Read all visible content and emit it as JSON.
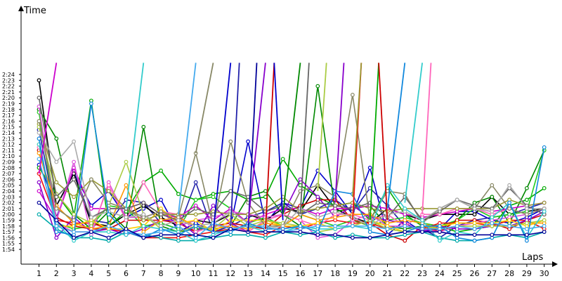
{
  "chart_data": {
    "type": "line",
    "xlabel": "Laps",
    "ylabel": "Time",
    "x": [
      1,
      2,
      3,
      4,
      5,
      6,
      7,
      8,
      9,
      10,
      11,
      12,
      13,
      14,
      15,
      16,
      17,
      18,
      19,
      20,
      21,
      22,
      23,
      24,
      25,
      26,
      27,
      28,
      29,
      30
    ],
    "xlim": [
      0,
      30
    ],
    "ylim": [
      113,
      146
    ],
    "y_unit": "seconds (tick labels shown as m:ss)",
    "y_ticks": [
      114,
      115,
      116,
      117,
      118,
      119,
      120,
      121,
      122,
      123,
      124,
      125,
      126,
      127,
      128,
      129,
      130,
      131,
      132,
      133,
      134,
      135,
      136,
      137,
      138,
      139,
      140,
      141,
      142,
      143,
      144
    ],
    "y_tick_labels": [
      "1:54",
      "1:55",
      "1:56",
      "1:57",
      "1:58",
      "1:59",
      "2:00",
      "2:01",
      "2:02",
      "2:03",
      "2:04",
      "2:05",
      "2:06",
      "2:07",
      "2:08",
      "2:09",
      "2:10",
      "2:11",
      "2:12",
      "2:13",
      "2:14",
      "2:15",
      "2:16",
      "2:17",
      "2:18",
      "2:19",
      "2:20",
      "2:21",
      "2:22",
      "2:23",
      "2:24"
    ],
    "grid": false,
    "legend": "none",
    "series": [
      {
        "color": "#0000cc",
        "values": [
          128.5,
          121.5,
          127,
          121.5,
          124,
          119.5,
          121,
          122.5,
          117,
          118.5,
          117,
          118,
          132.5,
          118.5,
          122,
          121,
          127.5,
          124,
          120,
          128,
          116.5,
          119,
          117,
          117.5,
          120.5,
          120.5,
          119,
          118.5,
          119.5,
          121
        ]
      },
      {
        "color": "#2222aa",
        "values": [
          134.5,
          119.5,
          127.5,
          119,
          118.5,
          122.5,
          122,
          118.5,
          117.5,
          125.5,
          117,
          118,
          119.5,
          120.5,
          122,
          120,
          121,
          122.5,
          120.5,
          124.5,
          121.5,
          118,
          117.5,
          116,
          118,
          119,
          119.5,
          120,
          121,
          122
        ]
      },
      {
        "color": "#000000",
        "values": [
          143,
          121.5,
          127,
          118.5,
          118,
          120,
          121.5,
          119.5,
          118,
          119,
          118.5,
          120,
          120,
          119,
          121,
          120.5,
          125,
          121,
          119.5,
          118.5,
          121,
          120,
          119,
          120,
          120,
          120,
          123,
          120,
          120.5,
          121
        ]
      },
      {
        "color": "#008800",
        "values": [
          138,
          133,
          120,
          117.5,
          120.5,
          117.5,
          135,
          118,
          117,
          117.5,
          117.5,
          118,
          123,
          124,
          120,
          118,
          142,
          120.5,
          121,
          121.5,
          118,
          117.5,
          118,
          117.5,
          119,
          122,
          123,
          118.5,
          124.5,
          131
        ]
      },
      {
        "color": "#00aa00",
        "values": [
          128,
          123.5,
          119.5,
          139.5,
          118,
          120.5,
          125.5,
          127.5,
          123.5,
          122.5,
          123.5,
          124,
          122.5,
          123,
          129.5,
          125,
          123,
          121.5,
          122,
          119,
          124.5,
          120,
          118,
          118,
          117,
          117.5,
          118,
          121.5,
          122.5,
          124.5
        ]
      },
      {
        "color": "#22cc22",
        "values": [
          137.5,
          118.5,
          117.5,
          118,
          121.5,
          121,
          118,
          118.5,
          117.5,
          122.5,
          123,
          121,
          118.5,
          119.5,
          118,
          120,
          119,
          118,
          119,
          118,
          119,
          119.5,
          118.5,
          118,
          119,
          121,
          119.5,
          120,
          120.5,
          131
        ]
      },
      {
        "color": "#cc0000",
        "values": [
          131,
          119.5,
          118,
          117.5,
          117.5,
          119,
          119,
          119,
          118.5,
          117,
          118,
          118.5,
          118,
          117.5,
          120,
          121.5,
          122.5,
          122.5,
          119,
          118.5,
          116.5,
          115.5,
          118,
          117,
          119,
          119,
          118.5,
          117.5,
          119,
          120
        ]
      },
      {
        "color": "#ee1111",
        "values": [
          127,
          119,
          118.5,
          118.5,
          117.5,
          117,
          116,
          116,
          116,
          116.5,
          117,
          117.5,
          117,
          116.5,
          118,
          117.5,
          118.5,
          119,
          118.5,
          118.5,
          117.5,
          118,
          117.5,
          118.5,
          118.5,
          118.5,
          118,
          119,
          119,
          117.5
        ]
      },
      {
        "color": "#cc00cc",
        "values": [
          124,
          119,
          128,
          121,
          121,
          121,
          122,
          120,
          119.5,
          121.5,
          119,
          121,
          118.5,
          120,
          121,
          121,
          120,
          121,
          121,
          121.5,
          121,
          120,
          119.5,
          120,
          120.5,
          121,
          120.5,
          121,
          121.5,
          122
        ]
      },
      {
        "color": "#dd55dd",
        "values": [
          138.5,
          119,
          129,
          116.5,
          125.5,
          119.5,
          119.5,
          120.5,
          118,
          119,
          119.5,
          120.5,
          120,
          119.5,
          120,
          119,
          116,
          116.5,
          119,
          120,
          118,
          118,
          117.5,
          117,
          118,
          118.5,
          119,
          119.5,
          120,
          121
        ]
      },
      {
        "color": "#8800cc",
        "values": [
          125.5,
          116,
          119.5,
          117,
          117.5,
          116.5,
          117.5,
          119,
          119,
          116.5,
          121.5,
          118.5,
          117,
          119,
          120,
          126,
          123,
          119.5,
          121.5,
          119.5,
          119,
          118.5,
          117,
          118,
          117.5,
          117.5,
          118,
          118,
          119,
          120.5
        ]
      },
      {
        "color": "#ff66bb",
        "values": [
          131.5,
          118.5,
          117,
          117,
          125,
          119,
          125.5,
          120.5,
          120,
          117,
          118,
          118,
          117,
          119,
          120,
          119,
          118,
          120,
          120,
          119,
          120,
          118,
          120,
          120,
          121,
          121,
          120,
          121,
          120,
          121
        ]
      },
      {
        "color": "#ff9900",
        "values": [
          130.5,
          121.5,
          118.5,
          117.5,
          118,
          125,
          117,
          119,
          119.5,
          118,
          117.5,
          118,
          117.5,
          118.5,
          118,
          120,
          119,
          119.5,
          120,
          120,
          118.5,
          119,
          118.5,
          117.5,
          118,
          118,
          118,
          118,
          118.5,
          118.5
        ]
      },
      {
        "color": "#ffcc00",
        "values": [
          132,
          118,
          118,
          119,
          117.5,
          117.5,
          118,
          121,
          118.5,
          119,
          117,
          119,
          119,
          119,
          118,
          118,
          118.5,
          117.5,
          118,
          119,
          118,
          117,
          118,
          118,
          118.5,
          118.5,
          118.5,
          119,
          118,
          119
        ]
      },
      {
        "color": "#999933",
        "values": [
          135.5,
          125.5,
          123,
          126,
          124,
          121,
          119,
          120,
          120,
          120,
          120.5,
          120,
          120,
          121,
          123,
          120.5,
          121,
          121.5,
          122,
          121,
          120.5,
          121,
          121,
          121,
          121,
          121,
          121,
          122.5,
          121.5,
          122
        ]
      },
      {
        "color": "#aacc44",
        "values": [
          135,
          123.5,
          120,
          118.5,
          121.5,
          129,
          120,
          117.5,
          117,
          118,
          117.5,
          120,
          118,
          119,
          118.5,
          118,
          117,
          117.5,
          118,
          119,
          117.5,
          117,
          118,
          117.5,
          118,
          118,
          118,
          118,
          118.5,
          119
        ]
      },
      {
        "color": "#888866",
        "values": [
          136,
          121,
          119,
          126,
          122,
          121,
          119.5,
          120.5,
          119.5,
          130.5,
          118,
          132.5,
          122,
          118,
          118,
          124,
          125,
          123,
          140.5,
          119,
          124,
          123.5,
          118.5,
          121,
          122.5,
          121,
          125,
          121,
          120,
          121
        ]
      },
      {
        "color": "#666666",
        "values": [
          140,
          123,
          126,
          119.5,
          121,
          121,
          122,
          120,
          119,
          121,
          120,
          124,
          123,
          120.5,
          121.5,
          120,
          122,
          121.5,
          121,
          122,
          119.5,
          123,
          119,
          120.5,
          122.5,
          121.5,
          121,
          124.5,
          121.5,
          120
        ]
      },
      {
        "color": "#aaaaaa",
        "values": [
          134,
          129,
          132.5,
          119.5,
          120.5,
          119.5,
          120,
          118,
          119,
          118,
          118.5,
          120.5,
          118.5,
          117.5,
          118,
          121,
          119.5,
          120.5,
          119.5,
          118,
          120,
          120.5,
          119,
          121,
          122.5,
          121,
          120.5,
          125,
          121,
          121
        ]
      },
      {
        "color": "#00aaaa",
        "values": [
          120,
          117.5,
          116,
          116,
          115.5,
          117,
          116.5,
          116,
          115.5,
          115.5,
          116,
          116.5,
          116.5,
          116,
          117,
          116.5,
          117,
          116,
          116.5,
          116,
          116,
          116.5,
          117,
          116,
          115.5,
          115.5,
          116,
          116.5,
          116,
          117
        ]
      },
      {
        "color": "#33cccc",
        "values": [
          132,
          118.5,
          115.5,
          117,
          117,
          116.5,
          118,
          117.5,
          117,
          115.5,
          116.5,
          117.5,
          118,
          117,
          117,
          118,
          117.5,
          117.5,
          118,
          117.5,
          125,
          121,
          119,
          115.5,
          117,
          116.5,
          119.5,
          122,
          116,
          120.5
        ]
      },
      {
        "color": "#1188dd",
        "values": [
          133,
          117,
          116.5,
          139,
          120,
          117,
          116,
          117.5,
          116.5,
          118,
          117,
          117,
          118.5,
          117.5,
          117.5,
          118,
          117,
          124,
          123.5,
          117,
          116.5,
          117,
          118,
          118,
          116,
          115.5,
          116,
          122,
          115.5,
          131.5
        ]
      },
      {
        "color": "#44aaee",
        "values": [
          129.5,
          118,
          117,
          117,
          118,
          117,
          116.5,
          117,
          118,
          116,
          118.5,
          117.5,
          118,
          118,
          117,
          117.5,
          118,
          118,
          118,
          118,
          117.5,
          118,
          117.5,
          117.5,
          118,
          117.5,
          118.5,
          118,
          117.5,
          118
        ]
      },
      {
        "color": "#000099",
        "values": [
          122,
          119,
          116,
          117,
          116,
          117.5,
          116,
          116.5,
          116.5,
          116.5,
          116,
          117.5,
          117,
          117,
          117,
          117,
          116.5,
          116.5,
          116,
          116,
          116.5,
          117,
          117,
          117,
          116.5,
          116.5,
          116.5,
          116.5,
          116.5,
          117
        ]
      }
    ],
    "outliers": [
      {
        "color": "#cc00cc",
        "from": [
          1,
          127
        ],
        "to": [
          2,
          146
        ]
      },
      {
        "color": "#33cccc",
        "from": [
          6,
          121
        ],
        "to": [
          7,
          146
        ]
      },
      {
        "color": "#44aaee",
        "from": [
          9,
          120
        ],
        "to": [
          10,
          146
        ]
      },
      {
        "color": "#888866",
        "from": [
          10,
          130.5
        ],
        "to": [
          11,
          146
        ]
      },
      {
        "color": "#0000cc",
        "from": [
          11,
          117
        ],
        "to": [
          12,
          146
        ]
      },
      {
        "color": "#2222aa",
        "from": [
          12,
          118
        ],
        "to": [
          12.5,
          146
        ]
      },
      {
        "color": "#000099",
        "from": [
          13,
          117
        ],
        "to": [
          13.5,
          146
        ]
      },
      {
        "color": "#8800cc",
        "from": [
          13,
          118.5
        ],
        "to": [
          14,
          146
        ]
      },
      {
        "color": "#cc0000",
        "from": [
          14,
          117.5
        ],
        "to": [
          14.5,
          146
        ]
      },
      {
        "color": "#0000cc",
        "from": [
          14.5,
          146
        ],
        "to": [
          15,
          119
        ]
      },
      {
        "color": "#008800",
        "from": [
          15,
          120
        ],
        "to": [
          16,
          146
        ]
      },
      {
        "color": "#666666",
        "from": [
          16,
          120
        ],
        "to": [
          16.5,
          146
        ]
      },
      {
        "color": "#aacc44",
        "from": [
          17,
          124
        ],
        "to": [
          17.5,
          146
        ]
      },
      {
        "color": "#8800cc",
        "from": [
          18,
          122
        ],
        "to": [
          18.5,
          146
        ]
      },
      {
        "color": "#ee1111",
        "from": [
          19,
          119
        ],
        "to": [
          19.5,
          146
        ]
      },
      {
        "color": "#00aa00",
        "from": [
          20,
          119
        ],
        "to": [
          20.5,
          146
        ]
      },
      {
        "color": "#cc0000",
        "from": [
          20.5,
          146
        ],
        "to": [
          21,
          119
        ]
      },
      {
        "color": "#1188dd",
        "from": [
          21,
          121
        ],
        "to": [
          22,
          146
        ]
      },
      {
        "color": "#ff66bb",
        "from": [
          23,
          120
        ],
        "to": [
          23.5,
          146
        ]
      },
      {
        "color": "#33cccc",
        "from": [
          22,
          122
        ],
        "to": [
          23,
          146
        ]
      },
      {
        "color": "#999933",
        "from": [
          19,
          123
        ],
        "to": [
          19.5,
          146
        ]
      }
    ]
  }
}
